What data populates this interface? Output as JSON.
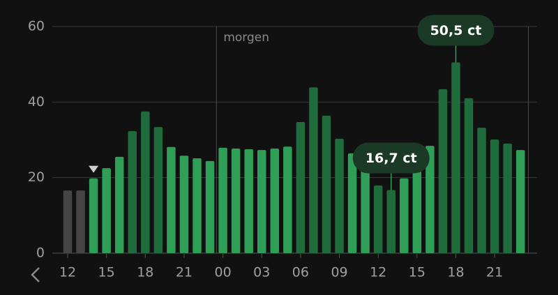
{
  "chart_data": {
    "type": "bar",
    "categories": [
      "12",
      null,
      null,
      "15",
      null,
      null,
      "18",
      null,
      null,
      "21",
      null,
      null,
      "00",
      null,
      null,
      "03",
      null,
      null,
      "06",
      null,
      null,
      "09",
      null,
      null,
      "12",
      null,
      null,
      "15",
      null,
      null,
      "18",
      null,
      null,
      "21",
      null,
      null
    ],
    "series": [
      {
        "values": [
          16.6,
          16.6,
          19.8,
          22.5,
          25.5,
          32.3,
          37.5,
          33.4,
          28.1,
          25.8,
          25.1,
          24.4,
          27.9,
          27.7,
          27.5,
          27.3,
          27.7,
          28.2,
          34.7,
          43.9,
          36.4,
          30.3,
          26.4,
          23.6,
          17.9,
          16.7,
          19.8,
          22.7,
          28.4,
          43.4,
          50.5,
          41.0,
          33.2,
          30.1,
          29.0,
          27.3
        ],
        "value_labels": [
          null,
          null,
          null,
          null,
          null,
          null,
          null,
          null,
          null,
          null,
          null,
          null,
          null,
          null,
          null,
          null,
          null,
          null,
          null,
          null,
          null,
          null,
          null,
          null,
          null,
          "16,7 ct",
          null,
          null,
          null,
          null,
          "50,5 ct",
          null,
          null,
          null,
          null,
          null
        ],
        "colors": [
          "#454545",
          "#454545",
          "#2f9e57",
          "#2f9e57",
          "#2f9e57",
          "#1f6b3b",
          "#1f6b3b",
          "#1f6b3b",
          "#2f9e57",
          "#2f9e57",
          "#2f9e57",
          "#2f9e57",
          "#2f9e57",
          "#2f9e57",
          "#2f9e57",
          "#2f9e57",
          "#2f9e57",
          "#2f9e57",
          "#1f6b3b",
          "#1f6b3b",
          "#1f6b3b",
          "#1f6b3b",
          "#2f9e57",
          "#2f9e57",
          "#1f6b3b",
          "#1f6b3b",
          "#2f9e57",
          "#2f9e57",
          "#2f9e57",
          "#1f6b3b",
          "#1f6b3b",
          "#1f6b3b",
          "#1f6b3b",
          "#1f6b3b",
          "#1f6b3b",
          "#2f9e57"
        ]
      }
    ],
    "ylim": [
      0,
      60
    ],
    "yticks": [
      0,
      20,
      40,
      60
    ],
    "grid": true,
    "annotations": [
      "morgen"
    ]
  }
}
